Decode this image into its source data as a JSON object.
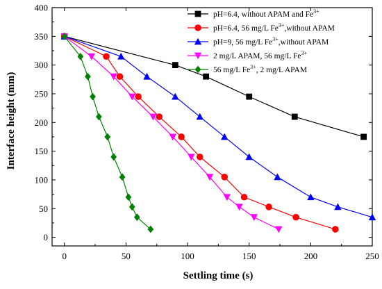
{
  "chart_data": {
    "type": "line",
    "xlabel": "Settling time (s)",
    "ylabel": "Interface height (mm)",
    "xlim": [
      -10,
      250
    ],
    "ylim": [
      -15,
      400
    ],
    "xticks": [
      0,
      50,
      100,
      150,
      200,
      250
    ],
    "yticks": [
      0,
      50,
      100,
      150,
      200,
      250,
      300,
      350,
      400
    ],
    "grid": false,
    "legend_position": "top-right",
    "series": [
      {
        "name": "pH=6.4, without APAM and Fe3+",
        "name_parts": [
          "pH=6.4, without APAM and Fe",
          "3+",
          ""
        ],
        "color": "#000000",
        "marker": "square",
        "x": [
          0,
          90,
          115,
          150,
          187,
          243
        ],
        "y": [
          350,
          300,
          280,
          245,
          210,
          175
        ]
      },
      {
        "name": "pH=6.4, 56 mg/L Fe3+,without APAM",
        "name_parts": [
          "pH=6.4, 56 mg/L Fe",
          "3+",
          ",without APAM"
        ],
        "color": "#ff0000",
        "marker": "circle",
        "x": [
          0,
          34,
          45,
          60,
          77,
          95,
          110,
          130,
          146,
          166,
          188,
          220
        ],
        "y": [
          350,
          315,
          280,
          245,
          210,
          175,
          140,
          105,
          70,
          53,
          35,
          14
        ]
      },
      {
        "name": "pH=9, 56 mg/L Fe3+,without APAM",
        "name_parts": [
          "pH=9, 56 mg/L Fe",
          "3+",
          ",without APAM"
        ],
        "color": "#0000ff",
        "marker": "triangle-up",
        "x": [
          0,
          46,
          67,
          90,
          110,
          130,
          150,
          173,
          200,
          222,
          250
        ],
        "y": [
          350,
          315,
          280,
          245,
          210,
          175,
          140,
          105,
          70,
          53,
          35
        ]
      },
      {
        "name": "2 mg/L APAM, 56 mg/L Fe3+",
        "name_parts": [
          "2 mg/L APAM, 56 mg/L Fe",
          "3+",
          ""
        ],
        "color": "#ff00ff",
        "marker": "triangle-down",
        "x": [
          0,
          22,
          40,
          55,
          72,
          88,
          103,
          118,
          132,
          142,
          154,
          174
        ],
        "y": [
          350,
          315,
          280,
          245,
          210,
          175,
          140,
          105,
          70,
          53,
          35,
          14
        ]
      },
      {
        "name": "56 mg/L Fe3+, 2 mg/L APAM",
        "name_parts": [
          "56 mg/L Fe",
          "3+",
          ", 2 mg/L APAM"
        ],
        "color": "#008000",
        "marker": "diamond",
        "x": [
          0,
          13,
          19,
          23,
          28,
          35,
          40,
          47,
          52,
          55,
          59,
          70
        ],
        "y": [
          350,
          315,
          280,
          245,
          210,
          175,
          140,
          105,
          70,
          53,
          35,
          14
        ]
      }
    ]
  }
}
